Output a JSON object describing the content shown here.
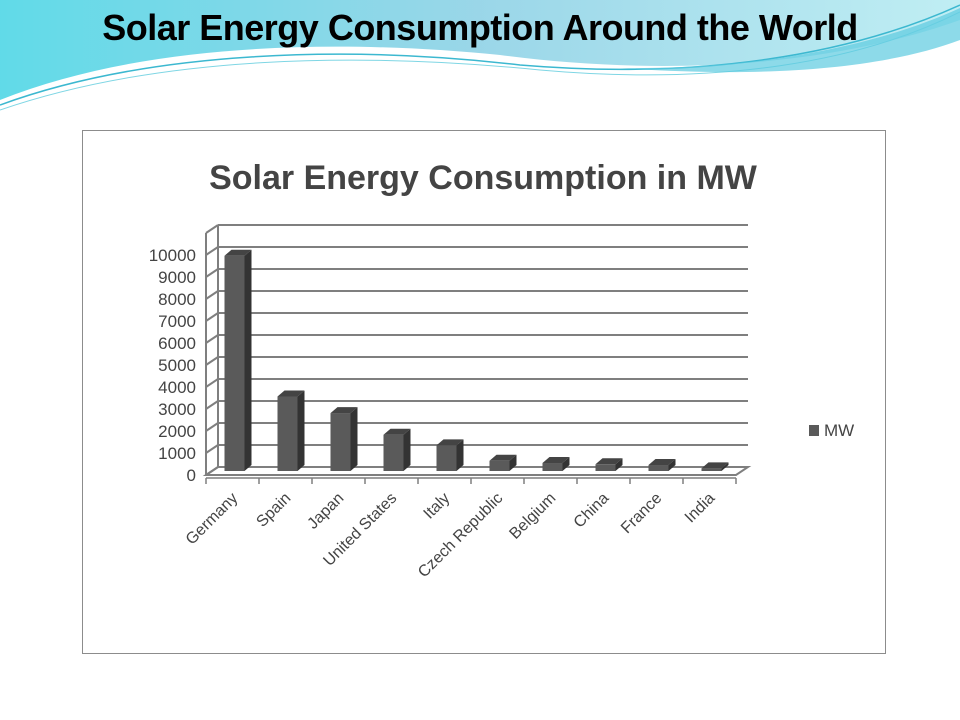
{
  "slide": {
    "title": "Solar Energy Consumption Around the World"
  },
  "colors": {
    "bar": "#5a5a5a",
    "bar_side": "#333333",
    "bar_top": "#444444",
    "grid": "#7f7f7f",
    "swoosh": "#5fd0e0"
  },
  "chart_data": {
    "type": "bar",
    "title": "Solar Energy Consumption in MW",
    "categories": [
      "Germany",
      "Spain",
      "Japan",
      "United States",
      "Italy",
      "Czech Republic",
      "Belgium",
      "China",
      "France",
      "India"
    ],
    "series": [
      {
        "name": "MW",
        "values": [
          9785,
          3386,
          2633,
          1650,
          1167,
          465,
          363,
          305,
          272,
          120
        ]
      }
    ],
    "yticks": [
      "0",
      "1000",
      "2000",
      "3000",
      "4000",
      "5000",
      "6000",
      "7000",
      "8000",
      "9000",
      "10000"
    ],
    "ylim": [
      0,
      11000
    ],
    "xlabel": "",
    "ylabel": "",
    "grid": true,
    "legend": "right",
    "style": "3d-column"
  }
}
